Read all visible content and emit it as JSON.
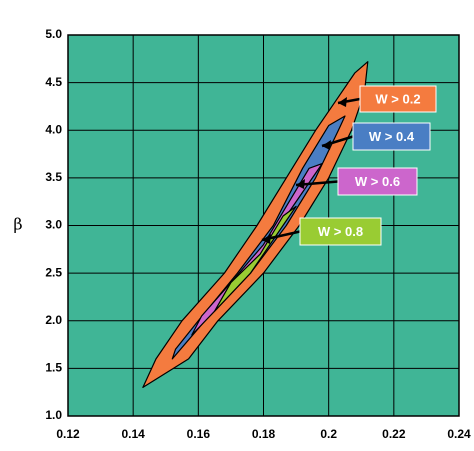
{
  "chart_data": {
    "type": "contour",
    "y_label": "β",
    "xlim": [
      0.12,
      0.24
    ],
    "xticks": [
      0.12,
      0.14,
      0.16,
      0.18,
      0.2,
      0.22,
      0.24
    ],
    "ylim": [
      1.0,
      5.0
    ],
    "yticks": [
      {
        "value": 1.0,
        "label": "1.0"
      },
      {
        "value": 1.5,
        "label": "1.5"
      },
      {
        "value": 2.0,
        "label": "2.0"
      },
      {
        "value": 2.5,
        "label": "2.5"
      },
      {
        "value": 3.0,
        "label": "3.0"
      },
      {
        "value": 3.5,
        "label": "3.5"
      },
      {
        "value": 4.0,
        "label": "4.0"
      },
      {
        "value": 4.5,
        "label": "4.5"
      },
      {
        "value": 5.0,
        "label": "5.0"
      }
    ],
    "grid": true,
    "background": "#40b596",
    "series": [
      {
        "name": "W > 0.2",
        "color": "#f47b3f",
        "x": [
          0.143,
          0.157,
          0.166,
          0.18,
          0.191,
          0.2,
          0.207,
          0.211,
          0.212,
          0.208,
          0.202,
          0.196,
          0.187,
          0.178,
          0.168,
          0.155,
          0.147
        ],
        "y": [
          1.3,
          1.6,
          2.0,
          2.5,
          3.0,
          3.5,
          4.0,
          4.4,
          4.72,
          4.6,
          4.3,
          4.0,
          3.5,
          3.0,
          2.5,
          2.0,
          1.6
        ]
      },
      {
        "name": "W > 0.4",
        "color": "#4a7ec4",
        "x": [
          0.152,
          0.162,
          0.176,
          0.187,
          0.196,
          0.203,
          0.205,
          0.2,
          0.192,
          0.183,
          0.172,
          0.16,
          0.153
        ],
        "y": [
          1.6,
          2.0,
          2.5,
          3.0,
          3.5,
          4.0,
          4.15,
          4.05,
          3.6,
          3.0,
          2.5,
          2.0,
          1.7
        ]
      },
      {
        "name": "W > 0.6",
        "color": "#cc66cc",
        "x": [
          0.158,
          0.165,
          0.176,
          0.185,
          0.193,
          0.198,
          0.194,
          0.187,
          0.18,
          0.17,
          0.161
        ],
        "y": [
          1.85,
          2.1,
          2.5,
          3.0,
          3.4,
          3.65,
          3.6,
          3.2,
          2.8,
          2.4,
          2.05
        ]
      },
      {
        "name": "W > 0.8",
        "color": "#99cc33",
        "x": [
          0.165,
          0.176,
          0.184,
          0.19,
          0.186,
          0.179,
          0.17
        ],
        "y": [
          2.1,
          2.5,
          2.9,
          3.2,
          3.1,
          2.7,
          2.4
        ]
      }
    ]
  }
}
